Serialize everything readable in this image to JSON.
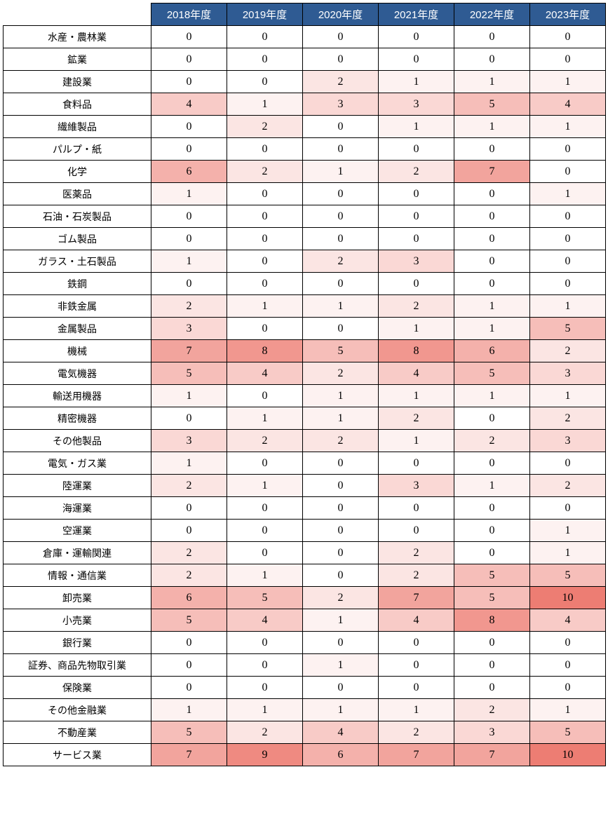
{
  "header_bg": "#2f5b93",
  "header_fg": "#ffffff",
  "max_value": 10,
  "heat_color": {
    "r": 237,
    "g": 125,
    "b": 115
  },
  "years": [
    "2018年度",
    "2019年度",
    "2020年度",
    "2021年度",
    "2022年度",
    "2023年度"
  ],
  "rows": [
    {
      "label": "水産・農林業",
      "values": [
        0,
        0,
        0,
        0,
        0,
        0
      ]
    },
    {
      "label": "鉱業",
      "values": [
        0,
        0,
        0,
        0,
        0,
        0
      ]
    },
    {
      "label": "建設業",
      "values": [
        0,
        0,
        2,
        1,
        1,
        1
      ]
    },
    {
      "label": "食料品",
      "values": [
        4,
        1,
        3,
        3,
        5,
        4
      ]
    },
    {
      "label": "繊維製品",
      "values": [
        0,
        2,
        0,
        1,
        1,
        1
      ]
    },
    {
      "label": "パルプ・紙",
      "values": [
        0,
        0,
        0,
        0,
        0,
        0
      ]
    },
    {
      "label": "化学",
      "values": [
        6,
        2,
        1,
        2,
        7,
        0
      ]
    },
    {
      "label": "医薬品",
      "values": [
        1,
        0,
        0,
        0,
        0,
        1
      ]
    },
    {
      "label": "石油・石炭製品",
      "values": [
        0,
        0,
        0,
        0,
        0,
        0
      ]
    },
    {
      "label": "ゴム製品",
      "values": [
        0,
        0,
        0,
        0,
        0,
        0
      ]
    },
    {
      "label": "ガラス・土石製品",
      "values": [
        1,
        0,
        2,
        3,
        0,
        0
      ]
    },
    {
      "label": "鉄鋼",
      "values": [
        0,
        0,
        0,
        0,
        0,
        0
      ]
    },
    {
      "label": "非鉄金属",
      "values": [
        2,
        1,
        1,
        2,
        1,
        1
      ]
    },
    {
      "label": "金属製品",
      "values": [
        3,
        0,
        0,
        1,
        1,
        5
      ]
    },
    {
      "label": "機械",
      "values": [
        7,
        8,
        5,
        8,
        6,
        2
      ]
    },
    {
      "label": "電気機器",
      "values": [
        5,
        4,
        2,
        4,
        5,
        3
      ]
    },
    {
      "label": "輸送用機器",
      "values": [
        1,
        0,
        1,
        1,
        1,
        1
      ]
    },
    {
      "label": "精密機器",
      "values": [
        0,
        1,
        1,
        2,
        0,
        2
      ]
    },
    {
      "label": "その他製品",
      "values": [
        3,
        2,
        2,
        1,
        2,
        3
      ]
    },
    {
      "label": "電気・ガス業",
      "values": [
        1,
        0,
        0,
        0,
        0,
        0
      ]
    },
    {
      "label": "陸運業",
      "values": [
        2,
        1,
        0,
        3,
        1,
        2
      ]
    },
    {
      "label": "海運業",
      "values": [
        0,
        0,
        0,
        0,
        0,
        0
      ]
    },
    {
      "label": "空運業",
      "values": [
        0,
        0,
        0,
        0,
        0,
        1
      ]
    },
    {
      "label": "倉庫・運輸関連",
      "values": [
        2,
        0,
        0,
        2,
        0,
        1
      ]
    },
    {
      "label": "情報・通信業",
      "values": [
        2,
        1,
        0,
        2,
        5,
        5
      ]
    },
    {
      "label": "卸売業",
      "values": [
        6,
        5,
        2,
        7,
        5,
        10
      ]
    },
    {
      "label": "小売業",
      "values": [
        5,
        4,
        1,
        4,
        8,
        4
      ]
    },
    {
      "label": "銀行業",
      "values": [
        0,
        0,
        0,
        0,
        0,
        0
      ]
    },
    {
      "label": "証券、商品先物取引業",
      "values": [
        0,
        0,
        1,
        0,
        0,
        0
      ]
    },
    {
      "label": "保険業",
      "values": [
        0,
        0,
        0,
        0,
        0,
        0
      ]
    },
    {
      "label": "その他金融業",
      "values": [
        1,
        1,
        1,
        1,
        2,
        1
      ]
    },
    {
      "label": "不動産業",
      "values": [
        5,
        2,
        4,
        2,
        3,
        5
      ]
    },
    {
      "label": "サービス業",
      "values": [
        7,
        9,
        6,
        7,
        7,
        10
      ]
    }
  ]
}
